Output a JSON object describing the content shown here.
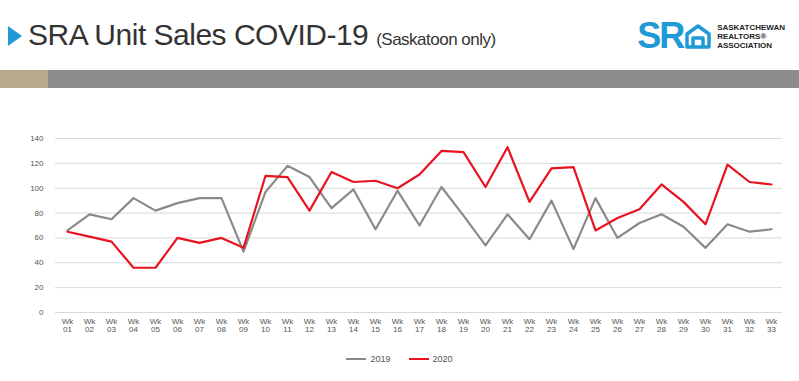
{
  "chart_data": {
    "type": "line",
    "title": "SRA Unit Sales COVID-19",
    "subtitle": "(Saskatoon only)",
    "categories": [
      "Wk 01",
      "Wk 02",
      "Wk 03",
      "Wk 04",
      "Wk 05",
      "Wk 06",
      "Wk 07",
      "Wk 08",
      "Wk 09",
      "Wk 10",
      "Wk 11",
      "Wk 12",
      "Wk 13",
      "Wk 14",
      "Wk 15",
      "Wk 16",
      "Wk 17",
      "Wk 18",
      "Wk 19",
      "Wk 20",
      "Wk 21",
      "Wk 22",
      "Wk 23",
      "Wk 24",
      "Wk 25",
      "Wk 26",
      "Wk 27",
      "Wk 28",
      "Wk 29",
      "Wk 30",
      "Wk 31",
      "Wk 32",
      "Wk 33"
    ],
    "series": [
      {
        "name": "2019",
        "color": "#8a8a8a",
        "values": [
          66,
          79,
          75,
          92,
          82,
          88,
          92,
          92,
          49,
          97,
          118,
          109,
          84,
          99,
          67,
          98,
          70,
          101,
          78,
          54,
          79,
          59,
          90,
          51,
          92,
          60,
          72,
          79,
          69,
          52,
          71,
          65,
          67
        ]
      },
      {
        "name": "2020",
        "color": "#e8131f",
        "values": [
          65,
          61,
          57,
          36,
          36,
          60,
          56,
          60,
          52,
          110,
          109,
          82,
          113,
          105,
          106,
          100,
          111,
          130,
          129,
          101,
          133,
          89,
          116,
          117,
          66,
          76,
          83,
          103,
          89,
          71,
          119,
          105,
          103
        ]
      }
    ],
    "ylim": [
      0,
      140
    ],
    "yticks": [
      0,
      20,
      40,
      60,
      80,
      100,
      120,
      140
    ],
    "grid": true,
    "legend": "bottom"
  },
  "logo": {
    "mark": "SR",
    "lines": [
      "SASKATCHEWAN",
      "REALTORS®",
      "ASSOCIATION"
    ]
  }
}
